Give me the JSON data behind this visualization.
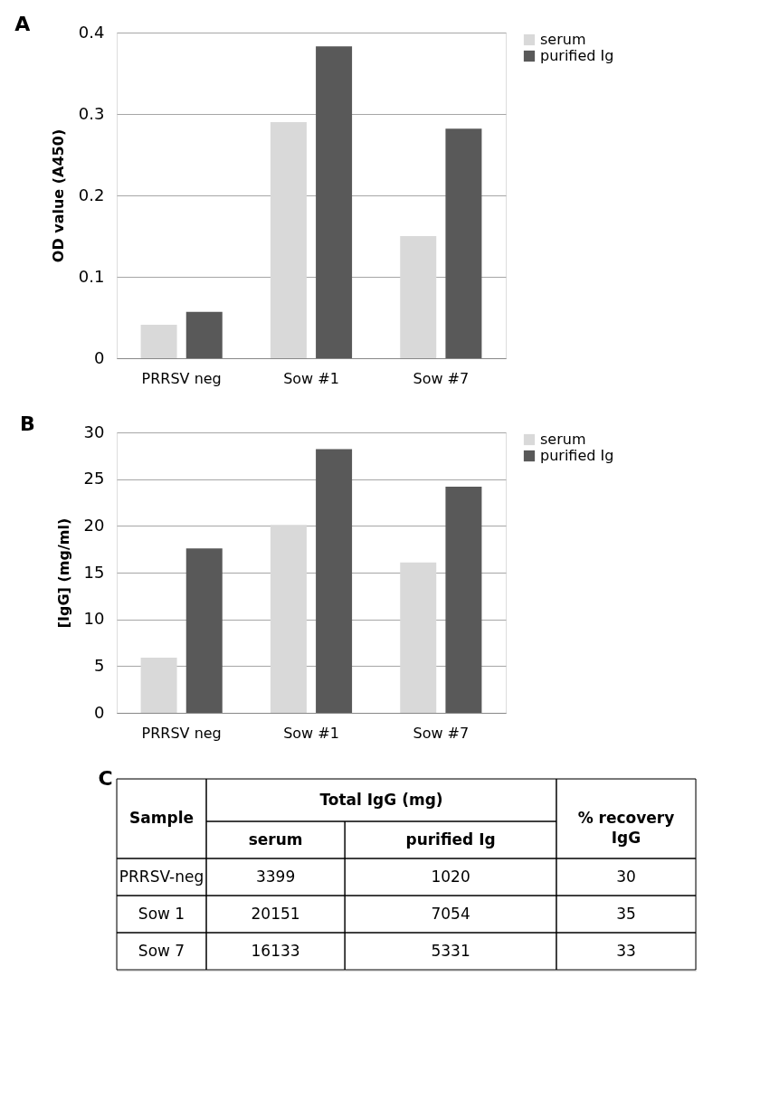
{
  "chart_data": [
    {
      "type": "bar",
      "title": "A",
      "ylabel": "OD value (A450)",
      "categories": [
        "PRRSV neg",
        "Sow #1",
        "Sow #7"
      ],
      "ylim": [
        0,
        0.4
      ],
      "yticks": [
        0,
        0.1,
        0.2,
        0.3,
        0.4
      ],
      "grid": "y",
      "legend": "right",
      "series": [
        {
          "name": "serum",
          "color": "#d9d9d9",
          "values": [
            0.041,
            0.29,
            0.15
          ]
        },
        {
          "name": "purified Ig",
          "color": "#595959",
          "values": [
            0.057,
            0.383,
            0.282
          ]
        }
      ]
    },
    {
      "type": "bar",
      "title": "B",
      "ylabel": "[IgG] (mg/ml)",
      "categories": [
        "PRRSV neg",
        "Sow #1",
        "Sow #7"
      ],
      "ylim": [
        0,
        30
      ],
      "yticks": [
        0,
        5,
        10,
        15,
        20,
        25,
        30
      ],
      "grid": "y",
      "legend": "right",
      "series": [
        {
          "name": "serum",
          "color": "#d9d9d9",
          "values": [
            5.9,
            20.1,
            16.1
          ]
        },
        {
          "name": "purified Ig",
          "color": "#595959",
          "values": [
            17.6,
            28.2,
            24.2
          ]
        }
      ]
    },
    {
      "type": "other",
      "title": "C",
      "annotations": [
        "Sample",
        "Total IgG (mg)",
        "% recovery IgG",
        "serum",
        "purified Ig",
        "PRRSV-neg",
        "3399",
        "1020",
        "30",
        "Sow 1",
        "20151",
        "7054",
        "35",
        "Sow 7",
        "16133",
        "5331",
        "33"
      ]
    }
  ]
}
